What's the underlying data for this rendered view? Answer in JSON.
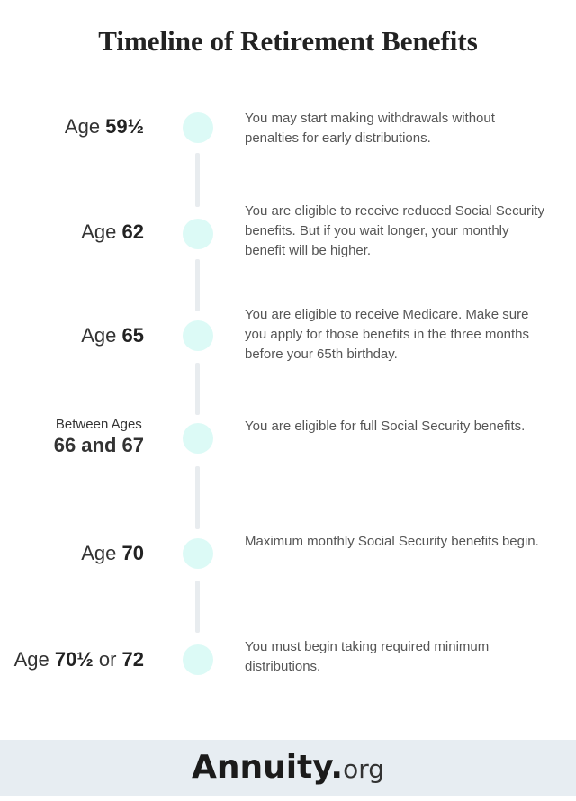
{
  "title": "Timeline of Retirement Benefits",
  "timeline": [
    {
      "prefix": "Age ",
      "age": "59½",
      "description": "You may start making withdrawals without penalties for early distributions."
    },
    {
      "prefix": "Age ",
      "age": "62",
      "description": "You are eligible to receive reduced Social Security benefits. But if you wait longer, your monthly benefit will be higher."
    },
    {
      "prefix": "Age ",
      "age": "65",
      "description": "You are eligible to receive Medicare. Make sure you apply for those benefits in the three months before your 65th birthday."
    },
    {
      "prefix": "Between Ages",
      "age": "66 and 67",
      "description": "You are eligible for full Social Security benefits."
    },
    {
      "prefix": "Age ",
      "age": "70",
      "description": "Maximum monthly Social Security benefits begin."
    },
    {
      "prefix": "Age ",
      "age": "70½",
      "middle": " or ",
      "age2": "72",
      "description": "You must begin taking required minimum distributions."
    }
  ],
  "footer": {
    "logo_main": "Annuity.",
    "logo_tld": "org"
  },
  "colors": {
    "dot": "#dcfaf6",
    "connector": "#e8ecef",
    "footer_bg": "#e7edf2"
  }
}
